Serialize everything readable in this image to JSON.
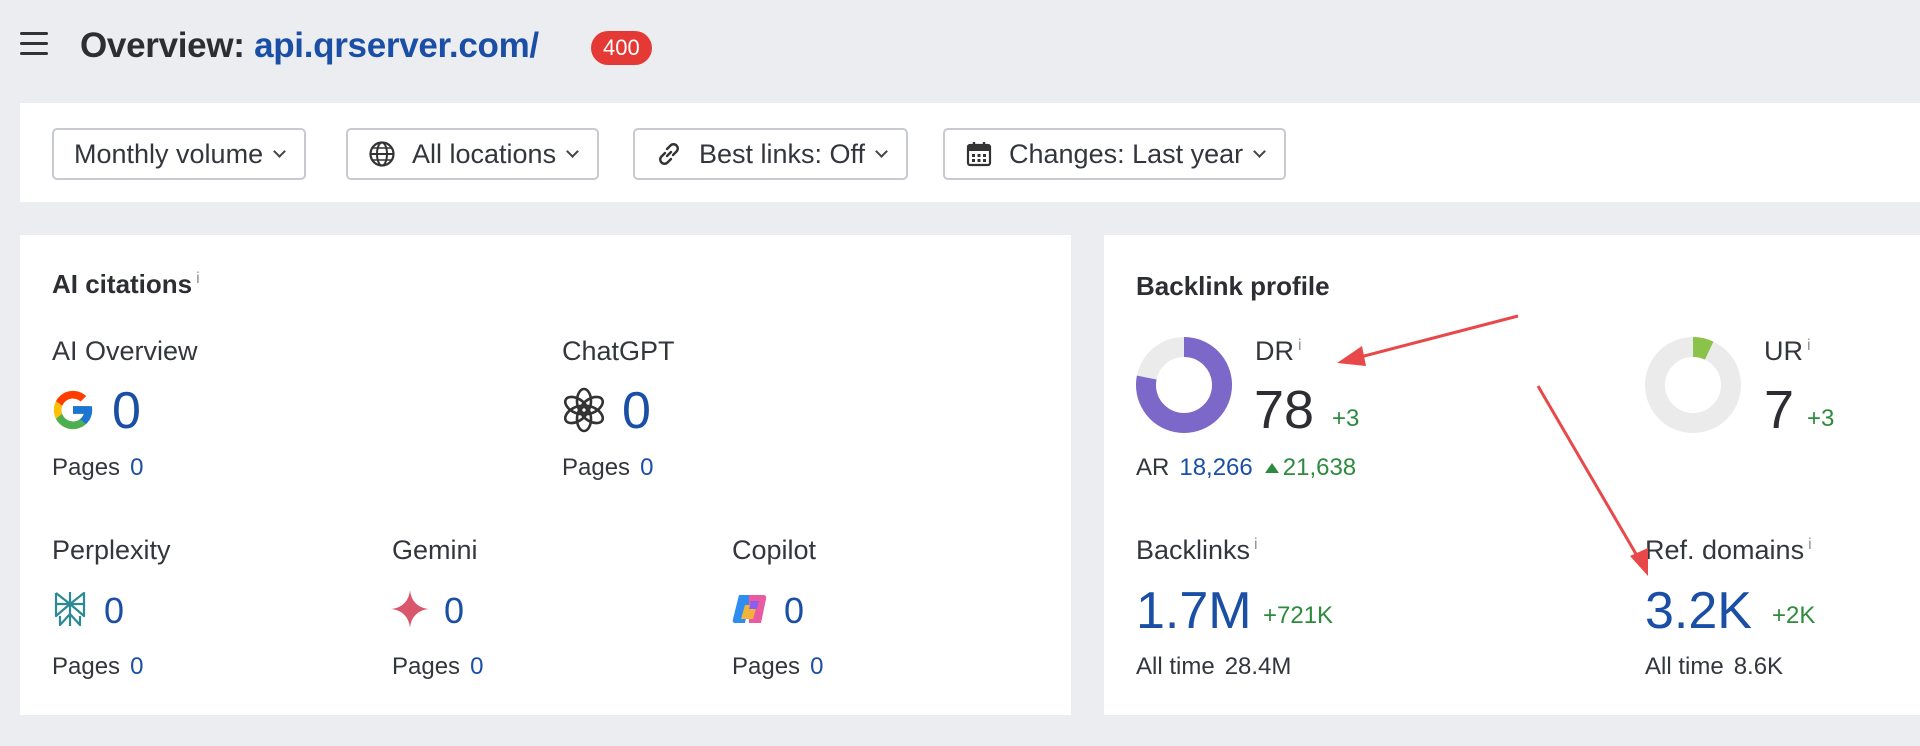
{
  "header": {
    "title_prefix": "Overview:",
    "domain": "api.qrserver.com/",
    "status_badge": "400"
  },
  "filters": [
    {
      "label": "Monthly volume",
      "icon": "none"
    },
    {
      "label": "All locations",
      "icon": "globe-icon"
    },
    {
      "label": "Best links: Off",
      "icon": "link-icon"
    },
    {
      "label": "Changes: Last year",
      "icon": "calendar-icon"
    }
  ],
  "ai_citations": {
    "title": "AI citations",
    "info": "i",
    "pages_label": "Pages",
    "ai_overview": {
      "name": "AI Overview",
      "value": "0",
      "pages": "0"
    },
    "chatgpt": {
      "name": "ChatGPT",
      "value": "0",
      "pages": "0"
    },
    "perplexity": {
      "name": "Perplexity",
      "value": "0",
      "pages": "0"
    },
    "gemini": {
      "name": "Gemini",
      "value": "0",
      "pages": "0"
    },
    "copilot": {
      "name": "Copilot",
      "value": "0",
      "pages": "0"
    }
  },
  "backlink_profile": {
    "title": "Backlink profile",
    "info": "i",
    "dr": {
      "label": "DR",
      "value": "78",
      "delta": "+3",
      "ring_fraction": 0.78,
      "ring_color": "#7b68c8"
    },
    "ar": {
      "label": "AR",
      "value": "18,266",
      "change": "21,638"
    },
    "ur": {
      "label": "UR",
      "value": "7",
      "delta": "+3",
      "ring_fraction": 0.07,
      "ring_color": "#8bc34a"
    },
    "backlinks": {
      "label": "Backlinks",
      "value": "1.7M",
      "delta": "+721K",
      "all_time_label": "All time",
      "all_time_value": "28.4M"
    },
    "ref_domains": {
      "label": "Ref. domains",
      "value": "3.2K",
      "delta": "+2K",
      "all_time_label": "All time",
      "all_time_value": "8.6K"
    }
  },
  "colors": {
    "brand_blue": "#1a4fa5",
    "positive_green": "#2e8b3e",
    "badge_red": "#e53935",
    "annotation_arrow": "#e8484a"
  }
}
